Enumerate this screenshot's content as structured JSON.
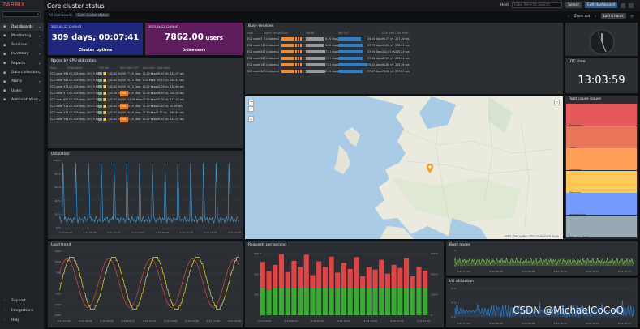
{
  "sidebar": {
    "logo": "ZABBIX",
    "search_placeholder": "",
    "items": [
      {
        "label": "Dashboards",
        "icon": "grid-icon",
        "active": true
      },
      {
        "label": "Monitoring",
        "icon": "eye-icon"
      },
      {
        "label": "Services",
        "icon": "services-icon"
      },
      {
        "label": "Inventory",
        "icon": "list-icon"
      },
      {
        "label": "Reports",
        "icon": "chart-icon"
      },
      {
        "label": "Data collection",
        "icon": "download-icon"
      },
      {
        "label": "Alerts",
        "icon": "bell-icon"
      },
      {
        "label": "Users",
        "icon": "user-icon"
      },
      {
        "label": "Administration",
        "icon": "gear-icon"
      }
    ],
    "bottom": [
      {
        "label": "Support",
        "icon": "lifebuoy-icon"
      },
      {
        "label": "Integrations",
        "icon": "plug-icon"
      },
      {
        "label": "Help",
        "icon": "help-icon"
      }
    ]
  },
  "header": {
    "title": "Core cluster status",
    "host_label": "Host",
    "host_placeholder": "type here to search",
    "select_label": "Select",
    "edit_label": "Edit dashboard"
  },
  "breadcrumb": {
    "all": "All dashboards",
    "current": "Core cluster status"
  },
  "nav": {
    "zoom_out": "Zoom out",
    "range": "Last 6 hours"
  },
  "uptime": {
    "date": "2023-04-12 12:03:43",
    "value": "309 days, 00:07:41",
    "label": "Cluster uptime",
    "color": "#22277e"
  },
  "users": {
    "date": "2023-04-12 12:04:43",
    "value": "7862.00 users",
    "unit_value": "7862.00",
    "unit": " users",
    "label": "Online users",
    "color": "#5e1e5e"
  },
  "nodes": {
    "title": "Nodes by CPU utilization",
    "columns": [
      "Host",
      "CPUs",
      "Uptime",
      "CPU util",
      "",
      "Net in",
      "Net OUT",
      "Disk read",
      "Disk write"
    ],
    "rows": [
      {
        "host": "EC2 node 39",
        "cpus": "1.00",
        "up": "309 days, 00:07:41",
        "pct": "60.82 %",
        "load": "4.00",
        "nin": "7.00 Kbps",
        "nout": "31.00 Kbps",
        "dr": "65.41 r/s",
        "dw": "254.07 w/s",
        "bars": 6
      },
      {
        "host": "EC2 node 38",
        "cpus": "1.00",
        "up": "309 days, 00:07:41",
        "pct": "60.82 %",
        "load": "4.00",
        "nin": "8.12 Kbps",
        "nout": "9.32 Kbps",
        "dr": "39.12 r/s",
        "dw": "150.44 w/s",
        "bars": 6
      },
      {
        "host": "EC2 node 47",
        "cpus": "1.00",
        "up": "309 days, 00:07:41",
        "pct": "60.82 %",
        "load": "4.00",
        "nin": "8.72 Kbps",
        "nout": "44.52 Kbps",
        "dr": "63.28 r/s",
        "dw": "238.64 w/s",
        "bars": 6
      },
      {
        "host": "EC2 node 4",
        "cpus": "1.00",
        "up": "309 days, 00:07:36",
        "pct": "63.76 %",
        "load": "7.00",
        "nin": "6.95 Kbps",
        "nout": "22.78 Kbps",
        "dr": "58.93 r/s",
        "dw": "205.00 w/s",
        "bars": 6,
        "hi": true
      },
      {
        "host": "EC2 node 60",
        "cpus": "1.00",
        "up": "309 days, 00:07:38",
        "pct": "60.82 %",
        "load": "4.00",
        "nin": "12.59 Kbps",
        "nout": "22.62 Kbps",
        "dr": "55.32 r/s",
        "dw": "177.37 w/s",
        "bars": 6
      },
      {
        "host": "EC2 node 21",
        "cpus": "1.00",
        "up": "309 days, 00:07:38",
        "pct": "60.82 %",
        "load": "7.00",
        "nin": "6.94 Kbps",
        "nout": "31.00 Kbps",
        "dr": "10.42 r/s",
        "dw": "35.34 w/s",
        "bars": 6,
        "hi": true
      },
      {
        "host": "EC2 node 23",
        "cpus": "1.00",
        "up": "309 days, 00:07:38",
        "pct": "60.82 %",
        "load": "4.00",
        "nin": "6.94 Kbps",
        "nout": "37.60 Kbps",
        "dr": "2.37 r/s",
        "dw": "190.61 w/s",
        "bars": 6
      },
      {
        "host": "EC2 node 29",
        "cpus": "1.00",
        "up": "309 days, 00:07:41",
        "pct": "60.82 %",
        "load": "7.00",
        "nin": "7.00 Kbps",
        "nout": "44.52 Kbps",
        "dr": "65.41 r/s",
        "dw": "254.07 w/s",
        "bars": 6,
        "hi": true
      }
    ]
  },
  "busy": {
    "title": "Busy services",
    "columns": [
      "Host",
      "Agent version",
      "Busy",
      "Net IN",
      "",
      "Net OUT",
      "",
      "Disk read",
      "Disk write"
    ],
    "rows": [
      {
        "host": "EC2 node 3",
        "ver": "7.0.0alpha1",
        "nin": "6.70 Kbps",
        "nout": "34.92 Kbps",
        "dr": "96.73 r/s",
        "dw": "257.16 w/s",
        "busy": 0.9,
        "inb": 0.55,
        "outb": 0.7
      },
      {
        "host": "EC2 node 74",
        "ver": "7.0.0alpha1",
        "nin": "6.66 Kbps",
        "nout": "37.73 Kbps",
        "dr": "95.63 r/s",
        "dw": "238.13 w/s",
        "busy": 0.9,
        "inb": 0.55,
        "outb": 0.75
      },
      {
        "host": "EC2 node 63",
        "ver": "7.0.0alpha1",
        "nin": "7.01 Kbps",
        "nout": "37.94 Kbps",
        "dr": "102.41 r/s",
        "dw": "250.23 w/s",
        "busy": 0.9,
        "inb": 0.6,
        "outb": 0.76
      },
      {
        "host": "EC2 node 66",
        "ver": "7.0.0alpha1",
        "nin": "7.07 Kbps",
        "nout": "37.84 Kbps",
        "dr": "82.54 r/s",
        "dw": "229.14 w/s",
        "busy": 0.9,
        "inb": 0.6,
        "outb": 0.76
      },
      {
        "host": "EC2 node 18",
        "ver": "7.0.0alpha1",
        "nin": "7.02 Kbps",
        "nout": "45.02 Kbps",
        "dr": "98.85 r/s",
        "dw": "255.76 w/s",
        "busy": 0.9,
        "inb": 0.6,
        "outb": 0.9
      },
      {
        "host": "EC2 node 40",
        "ver": "7.0.0alpha1",
        "nin": "6.70 Kbps",
        "nout": "37.87 Kbps",
        "dr": "76.18 r/s",
        "dw": "217.59 w/s",
        "busy": 0.9,
        "inb": 0.6,
        "outb": 0.76
      }
    ]
  },
  "utc": {
    "title": "UTC time",
    "time": "13:03:59"
  },
  "root": {
    "title": "Root cause issues",
    "items": [
      {
        "label": "Disaster",
        "color": "#e45959"
      },
      {
        "label": "High",
        "color": "#e97659"
      },
      {
        "label": "Average",
        "color": "#ffa059"
      },
      {
        "label": "Warning",
        "color": "#ffc859"
      },
      {
        "label": "Information",
        "color": "#7499ff"
      },
      {
        "label": "Not classified",
        "color": "#97aab3"
      }
    ]
  },
  "util": {
    "title": "Utilization",
    "yticks": [
      "100 %",
      "80 %",
      "60 %",
      "40 %",
      "20 %",
      "0 %"
    ],
    "xticks": [
      "4-12 07:30",
      "4-12 08:46",
      "4-12 09:27",
      "4-12 10:07",
      "4-12 10:48",
      "4-12 11:28",
      "4-12 12:09",
      "4-12 12:50"
    ],
    "color": "#4aa3df"
  },
  "load": {
    "title": "Load trend",
    "yticks": [
      "1500",
      "1000",
      "500",
      "0",
      "-500",
      "-1000",
      "-1500"
    ],
    "xticks": [
      "4-12 07:30",
      "4-12 08:08",
      "4-12 08:46",
      "4-12 09:27",
      "4-12 10:07",
      "4-12 10:48",
      "4-12 11:28",
      "4-12 12:09",
      "4-12 12:50"
    ],
    "colors": [
      "#e04444",
      "#e8d42a"
    ]
  },
  "rps": {
    "title": "Requests per second",
    "yticks": [
      "600 K",
      "400 K",
      "200 K",
      "0"
    ],
    "yticks_r": [
      "600 K",
      "400 K",
      "200 K",
      "0"
    ],
    "xticks": [
      "4-12 07:50",
      "4-12 08:47",
      "4-12 09:40",
      "4-12 10:34",
      "4-12 11:30",
      "4-12 12:24",
      "4-12 12:58"
    ],
    "chart_data": {
      "type": "bar",
      "series": [
        {
          "values": [
            270,
            250,
            270,
            265,
            260,
            270,
            260,
            270,
            260,
            265,
            270,
            260,
            265,
            270,
            260,
            265,
            270,
            260,
            265,
            270,
            265,
            260,
            270,
            265,
            260,
            270,
            265
          ]
        },
        {
          "values": [
            250,
            180,
            220,
            330,
            160,
            260,
            210,
            320,
            130,
            260,
            200,
            310,
            150,
            240,
            190,
            300,
            110,
            210,
            180,
            270,
            140,
            230,
            190,
            290,
            120,
            200,
            170
          ]
        }
      ]
    },
    "colors": [
      "#3aaa35",
      "#e04444"
    ]
  },
  "busynodes": {
    "title": "Busy nodes",
    "yticks": [
      "4",
      "2",
      "0"
    ],
    "xticks": [
      "4-12 07:07",
      "4-12 08:04",
      "4-12 09:09",
      "4-12 10:11",
      "4-12 11:11",
      "4-12 12:11"
    ],
    "color": "#7ac943"
  },
  "io": {
    "title": "I/O utilization",
    "yticks": [
      "6 %",
      "4 %",
      "2 %"
    ],
    "xticks": [
      "4-12 07:07",
      "4-12 08:04",
      "4-12 09:09",
      "4-12 10:11",
      "4-12 11:11",
      "4-12 12:11"
    ],
    "color": "#2f7fd1"
  },
  "map": {
    "attribution": "Leaflet | Tiles courtesy of the U.S. Geological Survey"
  },
  "watermark": "CSDN @MichaelCoCoQ"
}
